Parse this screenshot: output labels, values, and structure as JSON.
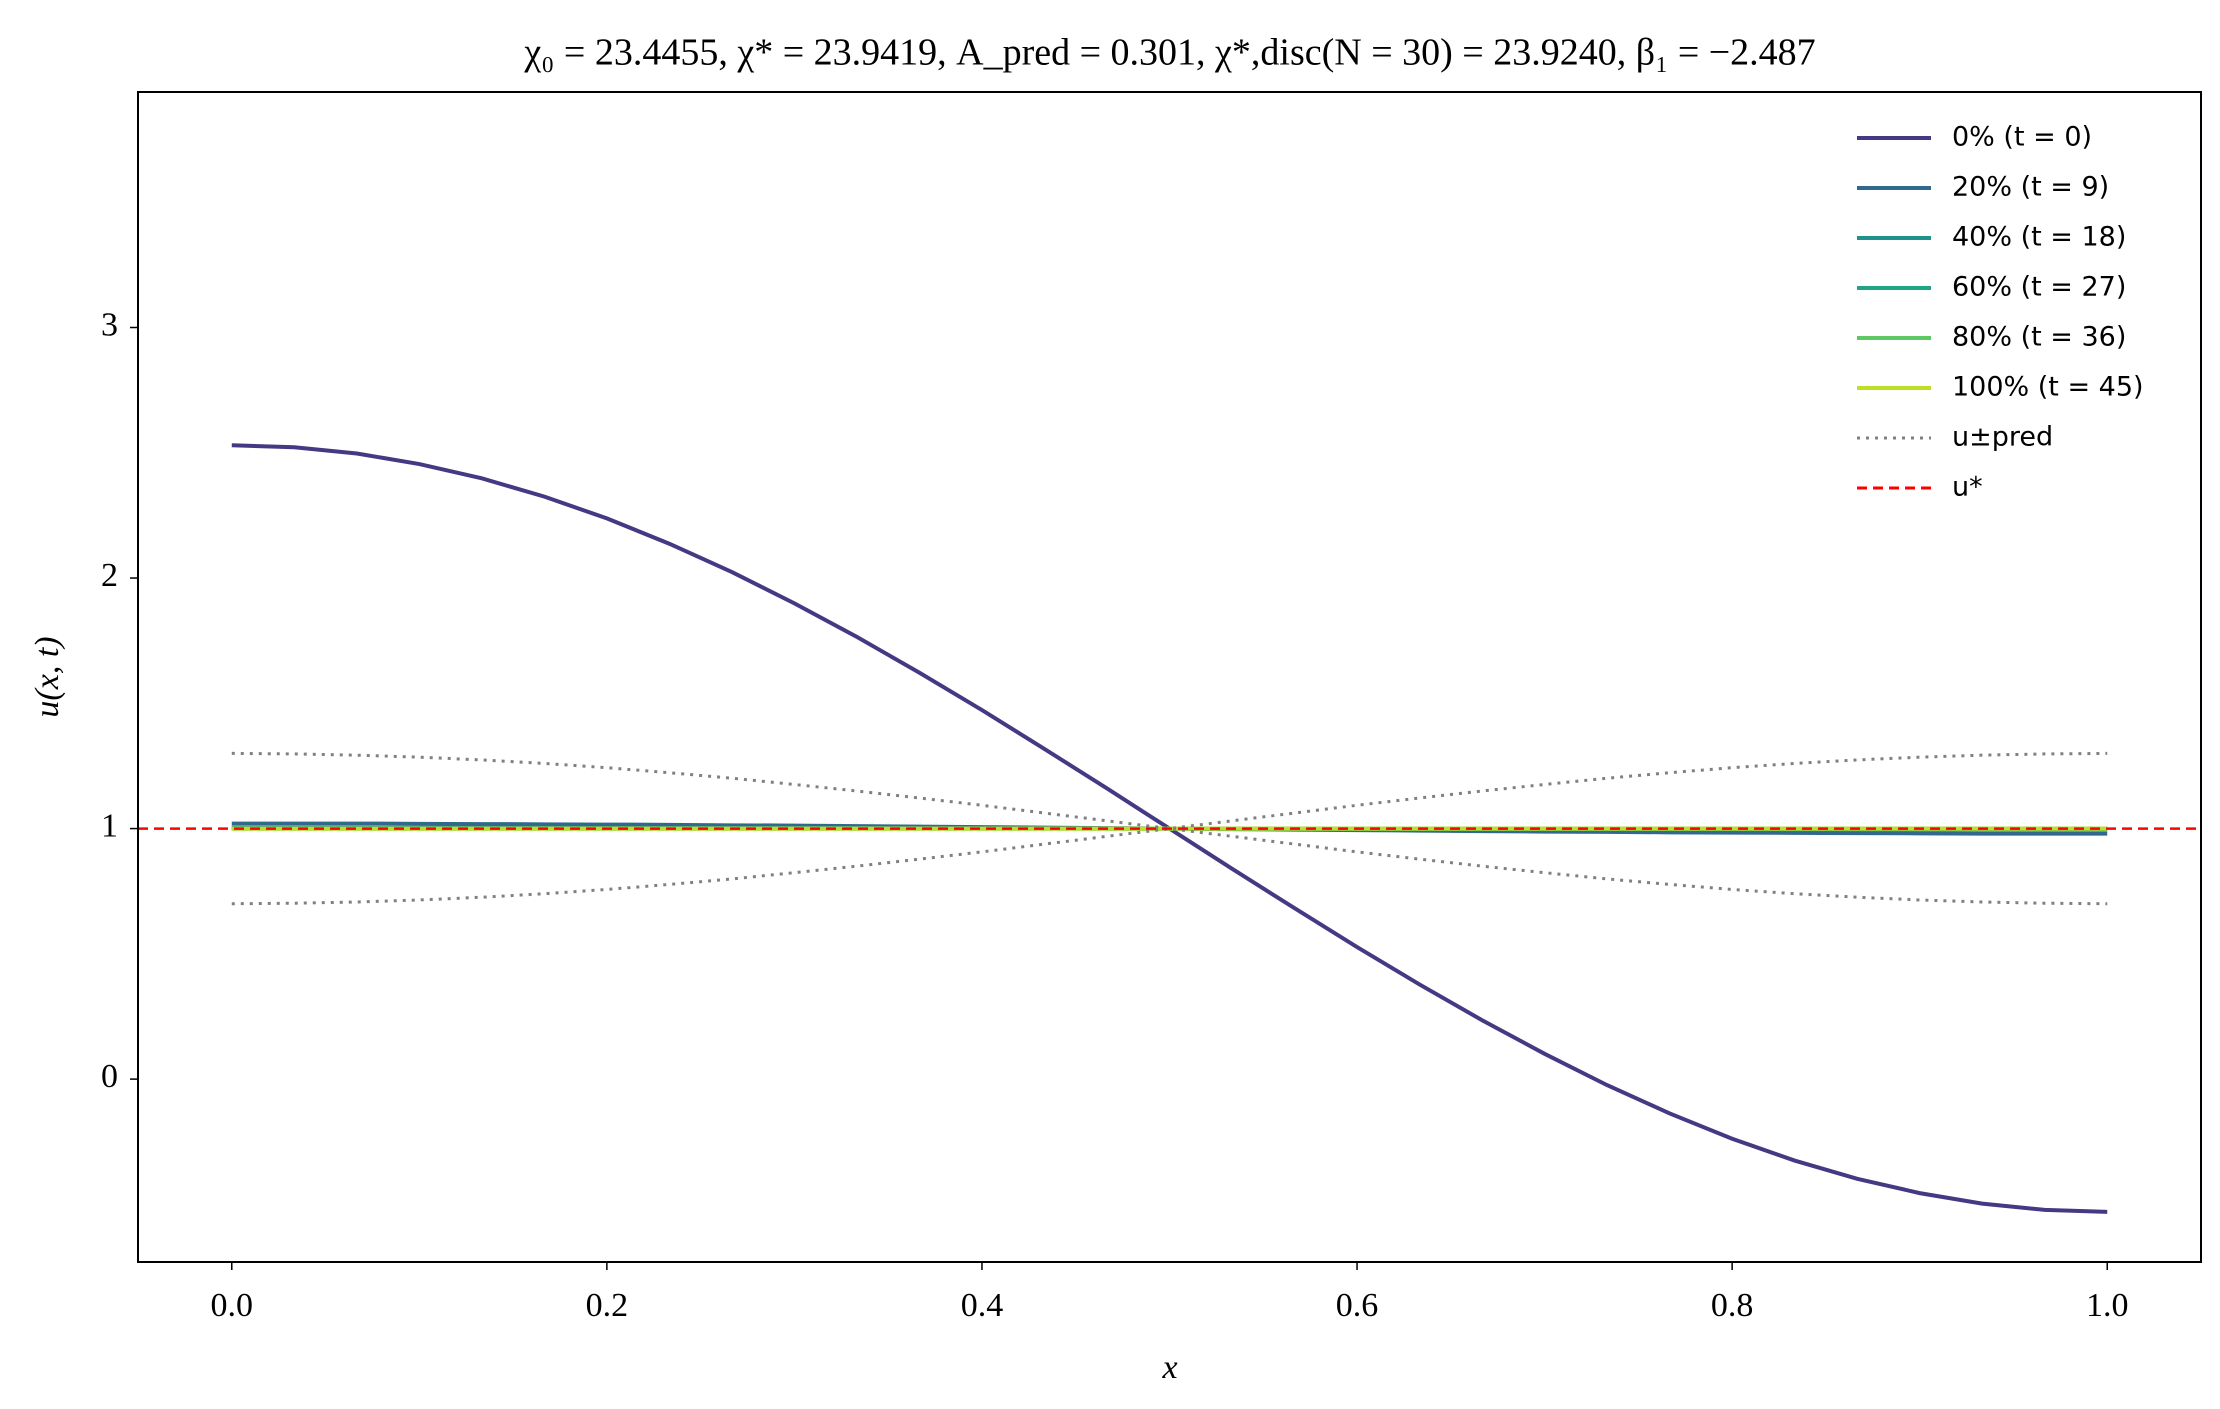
{
  "chart_data": {
    "type": "line",
    "title": "χ₀ = 23.4455,  χ* = 23.9419,  A_pred = 0.301,  χ*,disc(N = 30) = 23.9240,  β₁ = −2.487",
    "x_label": "x",
    "y_label": "u(x, t)",
    "x": [
      0,
      0.0333,
      0.0667,
      0.1,
      0.1333,
      0.1667,
      0.2,
      0.2333,
      0.2667,
      0.3,
      0.3333,
      0.3667,
      0.4,
      0.4333,
      0.4667,
      0.5,
      0.5333,
      0.5667,
      0.6,
      0.6333,
      0.6667,
      0.7,
      0.7333,
      0.7667,
      0.8,
      0.8333,
      0.8667,
      0.9,
      0.9333,
      0.9667,
      1
    ],
    "series": [
      {
        "name": "0% (t = 0)",
        "color": "#443983",
        "style": "solid",
        "values": [
          2.53,
          2.522,
          2.497,
          2.455,
          2.398,
          2.325,
          2.238,
          2.137,
          2.024,
          1.899,
          1.765,
          1.622,
          1.473,
          1.318,
          1.16,
          1.0,
          0.84,
          0.682,
          0.527,
          0.378,
          0.235,
          0.101,
          -0.024,
          -0.137,
          -0.238,
          -0.325,
          -0.398,
          -0.455,
          -0.497,
          -0.522,
          -0.53
        ]
      },
      {
        "name": "20% (t = 9)",
        "color": "#31688e",
        "style": "solid",
        "values": [
          1.02,
          1.02,
          1.02,
          1.019,
          1.018,
          1.017,
          1.016,
          1.015,
          1.013,
          1.012,
          1.01,
          1.008,
          1.006,
          1.004,
          1.002,
          1.0,
          0.998,
          0.996,
          0.994,
          0.992,
          0.99,
          0.988,
          0.987,
          0.985,
          0.984,
          0.983,
          0.982,
          0.981,
          0.98,
          0.98,
          0.98
        ]
      },
      {
        "name": "40% (t = 18)",
        "color": "#21918c",
        "style": "solid",
        "values": [
          1.003,
          1.003,
          1.003,
          1.003,
          1.003,
          1.003,
          1.002,
          1.002,
          1.002,
          1.002,
          1.002,
          1.001,
          1.001,
          1.001,
          1.0,
          1.0,
          1.0,
          0.999,
          0.999,
          0.999,
          0.998,
          0.998,
          0.998,
          0.998,
          0.998,
          0.997,
          0.997,
          0.997,
          0.997,
          0.997,
          0.997
        ]
      },
      {
        "name": "60% (t = 27)",
        "color": "#20a486",
        "style": "solid",
        "values": [
          1,
          1,
          1,
          1,
          1,
          1,
          1,
          1,
          1,
          1,
          1,
          1,
          1,
          1,
          1,
          1,
          1,
          1,
          1,
          1,
          1,
          1,
          1,
          1,
          1,
          1,
          1,
          1,
          1,
          1,
          1
        ]
      },
      {
        "name": "80% (t = 36)",
        "color": "#5ec962",
        "style": "solid",
        "values": [
          1,
          1,
          1,
          1,
          1,
          1,
          1,
          1,
          1,
          1,
          1,
          1,
          1,
          1,
          1,
          1,
          1,
          1,
          1,
          1,
          1,
          1,
          1,
          1,
          1,
          1,
          1,
          1,
          1,
          1,
          1
        ]
      },
      {
        "name": "100% (t = 45)",
        "color": "#bddf26",
        "style": "solid",
        "values": [
          1,
          1,
          1,
          1,
          1,
          1,
          1,
          1,
          1,
          1,
          1,
          1,
          1,
          1,
          1,
          1,
          1,
          1,
          1,
          1,
          1,
          1,
          1,
          1,
          1,
          1,
          1,
          1,
          1,
          1,
          1
        ]
      },
      {
        "name": "u±pred",
        "color": "#808080",
        "style": "dotted",
        "values": [
          1.3,
          1.298,
          1.293,
          1.285,
          1.274,
          1.26,
          1.243,
          1.223,
          1.201,
          1.176,
          1.15,
          1.122,
          1.093,
          1.062,
          1.031,
          1.0,
          0.969,
          0.938,
          0.907,
          0.878,
          0.85,
          0.824,
          0.799,
          0.777,
          0.757,
          0.74,
          0.726,
          0.715,
          0.707,
          0.702,
          0.7
        ],
        "lower_values": [
          0.7,
          0.702,
          0.707,
          0.715,
          0.726,
          0.74,
          0.757,
          0.777,
          0.799,
          0.824,
          0.85,
          0.878,
          0.907,
          0.938,
          0.969,
          1.0,
          1.031,
          1.062,
          1.093,
          1.122,
          1.15,
          1.176,
          1.201,
          1.223,
          1.243,
          1.26,
          1.274,
          1.285,
          1.293,
          1.298,
          1.3
        ]
      },
      {
        "name": "u*",
        "color": "#ff0000",
        "style": "dashed",
        "hline": 1
      }
    ],
    "xlim": [
      -0.05,
      1.05
    ],
    "ylim": [
      -0.73,
      3.94
    ],
    "xticks": [
      {
        "value": 0,
        "label": "0.0"
      },
      0.2,
      0.4,
      0.6,
      0.8,
      {
        "value": 1,
        "label": "1.0"
      }
    ],
    "yticks": [
      0,
      1,
      2,
      3
    ],
    "grid": false,
    "legend": "upper right"
  }
}
